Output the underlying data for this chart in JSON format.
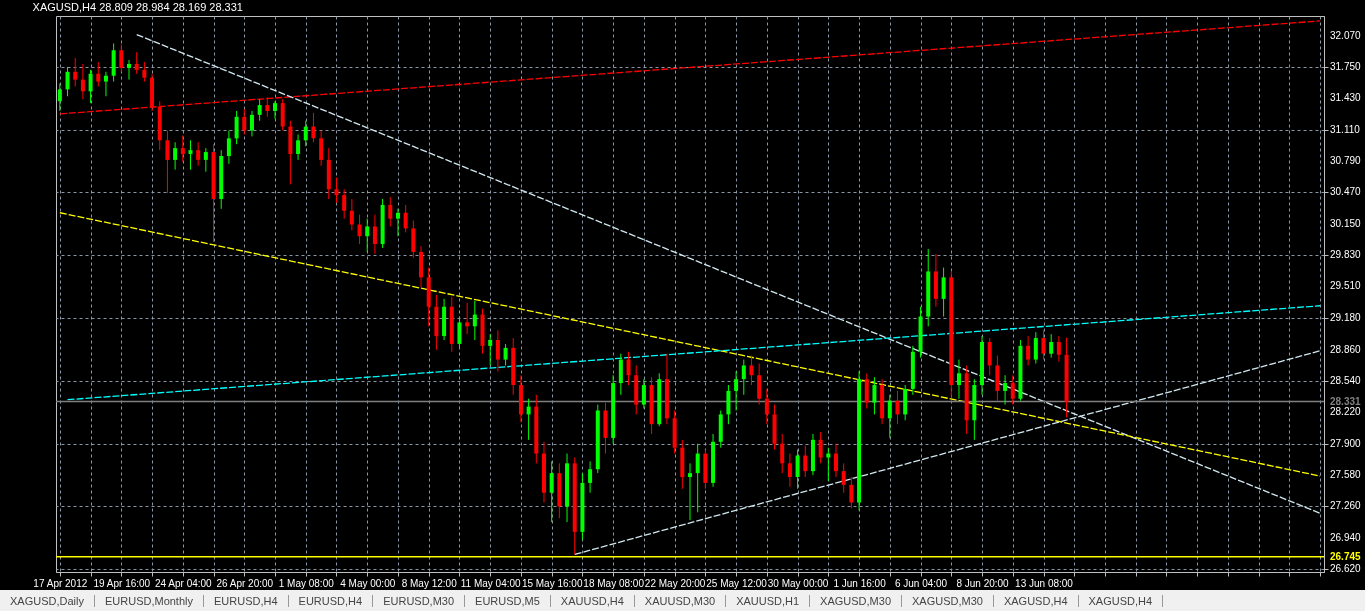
{
  "chart_data": {
    "type": "candlestick",
    "title": "XAGUSD,H4  28.809 28.984 28.169 28.331",
    "categories": [
      "17 Apr 2012",
      null,
      null,
      null,
      null,
      null,
      null,
      null,
      "19 Apr 16:00",
      null,
      null,
      null,
      null,
      null,
      null,
      null,
      "24 Apr 04:00",
      null,
      null,
      null,
      null,
      null,
      null,
      null,
      "26 Apr 20:00",
      null,
      null,
      null,
      null,
      null,
      null,
      null,
      "1 May 08:00",
      null,
      null,
      null,
      null,
      null,
      null,
      null,
      "4 May 00:00",
      null,
      null,
      null,
      null,
      null,
      null,
      null,
      "8 May 12:00",
      null,
      null,
      null,
      null,
      null,
      null,
      null,
      "11 May 04:00",
      null,
      null,
      null,
      null,
      null,
      null,
      null,
      "15 May 16:00",
      null,
      null,
      null,
      null,
      null,
      null,
      null,
      "18 May 08:00",
      null,
      null,
      null,
      null,
      null,
      null,
      null,
      "22 May 20:00",
      null,
      null,
      null,
      null,
      null,
      null,
      null,
      "25 May 12:00",
      null,
      null,
      null,
      null,
      null,
      null,
      null,
      "30 May 00:00",
      null,
      null,
      null,
      null,
      null,
      null,
      null,
      "1 Jun 16:00",
      null,
      null,
      null,
      null,
      null,
      null,
      null,
      "6 Jun 04:00",
      null,
      null,
      null,
      null,
      null,
      null,
      null,
      "8 Jun 20:00",
      null,
      null,
      null,
      null,
      null,
      null,
      null,
      "13 Jun 08:00",
      null,
      null,
      null,
      null,
      null,
      null,
      null,
      null,
      null,
      null,
      null,
      null,
      null,
      null,
      null,
      null,
      null,
      null,
      null,
      null,
      null,
      null,
      null,
      null,
      null,
      null,
      null,
      null,
      null,
      null,
      null,
      null,
      null,
      null,
      null,
      null
    ],
    "ohlc": [
      [
        31.4,
        31.58,
        31.3,
        31.52
      ],
      [
        31.52,
        31.75,
        31.45,
        31.7
      ],
      [
        31.7,
        31.84,
        31.55,
        31.62
      ],
      [
        31.62,
        31.78,
        31.42,
        31.5
      ],
      [
        31.5,
        31.72,
        31.38,
        31.68
      ],
      [
        31.68,
        31.8,
        31.55,
        31.6
      ],
      [
        31.6,
        31.7,
        31.45,
        31.66
      ],
      [
        31.66,
        31.99,
        31.6,
        31.92
      ],
      [
        31.92,
        31.98,
        31.7,
        31.74
      ],
      [
        31.74,
        31.82,
        31.62,
        31.78
      ],
      [
        31.78,
        31.9,
        31.68,
        31.72
      ],
      [
        31.72,
        31.8,
        31.6,
        31.64
      ],
      [
        31.64,
        31.68,
        31.3,
        31.34
      ],
      [
        31.34,
        31.4,
        30.9,
        31.0
      ],
      [
        31.0,
        31.1,
        30.46,
        30.8
      ],
      [
        30.8,
        30.98,
        30.7,
        30.92
      ],
      [
        30.92,
        31.05,
        30.78,
        30.86
      ],
      [
        30.86,
        31.0,
        30.7,
        30.9
      ],
      [
        30.9,
        30.98,
        30.74,
        30.8
      ],
      [
        30.8,
        30.92,
        30.68,
        30.88
      ],
      [
        30.88,
        30.96,
        29.96,
        30.4
      ],
      [
        30.4,
        30.9,
        30.3,
        30.84
      ],
      [
        30.84,
        31.1,
        30.76,
        31.02
      ],
      [
        31.02,
        31.3,
        30.96,
        31.24
      ],
      [
        31.24,
        31.32,
        31.06,
        31.1
      ],
      [
        31.1,
        31.3,
        31.04,
        31.26
      ],
      [
        31.26,
        31.42,
        31.2,
        31.36
      ],
      [
        31.36,
        31.44,
        31.24,
        31.3
      ],
      [
        31.3,
        31.4,
        31.22,
        31.38
      ],
      [
        31.38,
        31.42,
        31.1,
        31.14
      ],
      [
        31.14,
        31.2,
        30.55,
        30.86
      ],
      [
        30.86,
        31.06,
        30.8,
        31.0
      ],
      [
        31.0,
        31.2,
        30.94,
        31.14
      ],
      [
        31.14,
        31.28,
        30.98,
        31.02
      ],
      [
        31.02,
        31.1,
        30.74,
        30.8
      ],
      [
        30.8,
        30.92,
        30.4,
        30.5
      ],
      [
        30.5,
        30.62,
        30.36,
        30.44
      ],
      [
        30.44,
        30.5,
        30.2,
        30.28
      ],
      [
        30.28,
        30.4,
        30.08,
        30.14
      ],
      [
        30.14,
        30.24,
        29.94,
        30.02
      ],
      [
        30.02,
        30.2,
        29.86,
        30.12
      ],
      [
        30.12,
        30.24,
        29.84,
        29.94
      ],
      [
        29.94,
        30.4,
        29.9,
        30.34
      ],
      [
        30.34,
        30.42,
        30.12,
        30.2
      ],
      [
        30.2,
        30.3,
        30.02,
        30.26
      ],
      [
        30.26,
        30.34,
        30.06,
        30.1
      ],
      [
        30.1,
        30.18,
        29.8,
        29.86
      ],
      [
        29.86,
        29.92,
        29.5,
        29.6
      ],
      [
        29.6,
        29.7,
        29.1,
        29.3
      ],
      [
        29.3,
        29.42,
        28.86,
        29.0
      ],
      [
        29.0,
        29.38,
        28.96,
        29.3
      ],
      [
        29.3,
        29.4,
        28.84,
        28.92
      ],
      [
        28.92,
        29.2,
        28.88,
        29.14
      ],
      [
        29.14,
        29.34,
        29.02,
        29.1
      ],
      [
        29.1,
        29.36,
        28.96,
        29.22
      ],
      [
        29.22,
        29.28,
        28.82,
        28.9
      ],
      [
        28.9,
        29.02,
        28.7,
        28.96
      ],
      [
        28.96,
        29.06,
        28.64,
        28.76
      ],
      [
        28.76,
        28.92,
        28.7,
        28.88
      ],
      [
        28.88,
        28.98,
        28.4,
        28.5
      ],
      [
        28.5,
        28.6,
        28.12,
        28.2
      ],
      [
        28.2,
        28.36,
        27.94,
        28.28
      ],
      [
        28.28,
        28.4,
        27.7,
        27.8
      ],
      [
        27.8,
        27.92,
        27.3,
        27.4
      ],
      [
        27.4,
        27.72,
        27.1,
        27.6
      ],
      [
        27.6,
        27.7,
        27.14,
        27.26
      ],
      [
        27.26,
        27.8,
        27.1,
        27.7
      ],
      [
        27.7,
        27.76,
        26.77,
        27.0
      ],
      [
        27.0,
        27.6,
        26.92,
        27.5
      ],
      [
        27.5,
        27.72,
        27.4,
        27.64
      ],
      [
        27.64,
        28.3,
        27.6,
        28.24
      ],
      [
        28.24,
        28.32,
        27.8,
        27.96
      ],
      [
        27.96,
        28.6,
        27.9,
        28.52
      ],
      [
        28.52,
        28.82,
        28.4,
        28.76
      ],
      [
        28.76,
        28.84,
        28.5,
        28.6
      ],
      [
        28.6,
        28.7,
        28.2,
        28.3
      ],
      [
        28.3,
        28.56,
        28.26,
        28.5
      ],
      [
        28.5,
        28.58,
        28.0,
        28.1
      ],
      [
        28.1,
        28.62,
        28.08,
        28.56
      ],
      [
        28.56,
        28.82,
        28.1,
        28.16
      ],
      [
        28.16,
        28.24,
        27.8,
        27.86
      ],
      [
        27.86,
        27.94,
        27.44,
        27.56
      ],
      [
        27.56,
        27.7,
        27.12,
        27.6
      ],
      [
        27.6,
        27.9,
        27.2,
        27.8
      ],
      [
        27.8,
        27.84,
        27.44,
        27.5
      ],
      [
        27.5,
        28.0,
        27.46,
        27.92
      ],
      [
        27.92,
        28.24,
        27.86,
        28.2
      ],
      [
        28.2,
        28.5,
        28.1,
        28.44
      ],
      [
        28.44,
        28.64,
        28.24,
        28.56
      ],
      [
        28.56,
        28.76,
        28.4,
        28.7
      ],
      [
        28.7,
        28.8,
        28.5,
        28.6
      ],
      [
        28.6,
        28.72,
        28.3,
        28.36
      ],
      [
        28.36,
        28.46,
        28.1,
        28.2
      ],
      [
        28.2,
        28.3,
        27.84,
        27.9
      ],
      [
        27.9,
        28.0,
        27.6,
        27.7
      ],
      [
        27.7,
        27.8,
        27.46,
        27.56
      ],
      [
        27.56,
        27.84,
        27.44,
        27.78
      ],
      [
        27.78,
        27.88,
        27.56,
        27.62
      ],
      [
        27.62,
        28.0,
        27.58,
        27.94
      ],
      [
        27.94,
        28.02,
        27.7,
        27.76
      ],
      [
        27.76,
        27.86,
        27.52,
        27.8
      ],
      [
        27.8,
        27.9,
        27.56,
        27.62
      ],
      [
        27.62,
        27.7,
        27.4,
        27.48
      ],
      [
        27.48,
        27.56,
        27.24,
        27.3
      ],
      [
        27.3,
        28.64,
        27.22,
        28.56
      ],
      [
        28.56,
        28.62,
        28.26,
        28.32
      ],
      [
        28.32,
        28.58,
        28.2,
        28.5
      ],
      [
        28.5,
        28.56,
        28.1,
        28.16
      ],
      [
        28.16,
        28.4,
        27.96,
        28.34
      ],
      [
        28.34,
        28.44,
        28.1,
        28.2
      ],
      [
        28.2,
        28.5,
        28.14,
        28.46
      ],
      [
        28.46,
        28.9,
        28.4,
        28.84
      ],
      [
        28.84,
        29.3,
        28.78,
        29.2
      ],
      [
        29.2,
        29.89,
        29.1,
        29.66
      ],
      [
        29.66,
        29.84,
        29.3,
        29.38
      ],
      [
        29.38,
        29.7,
        29.2,
        29.6
      ],
      [
        29.6,
        29.66,
        28.38,
        28.5
      ],
      [
        28.5,
        28.76,
        28.36,
        28.62
      ],
      [
        28.62,
        28.7,
        28.0,
        28.14
      ],
      [
        28.14,
        28.56,
        27.94,
        28.5
      ],
      [
        28.5,
        29.0,
        28.4,
        28.94
      ],
      [
        28.94,
        28.98,
        28.6,
        28.7
      ],
      [
        28.7,
        28.8,
        28.34,
        28.44
      ],
      [
        28.44,
        28.6,
        28.3,
        28.52
      ],
      [
        28.52,
        28.6,
        28.3,
        28.36
      ],
      [
        28.36,
        28.96,
        28.34,
        28.9
      ],
      [
        28.9,
        29.0,
        28.7,
        28.76
      ],
      [
        28.76,
        29.04,
        28.72,
        28.98
      ],
      [
        28.98,
        29.06,
        28.76,
        28.82
      ],
      [
        28.82,
        29.02,
        28.78,
        28.94
      ],
      [
        28.94,
        29.0,
        28.74,
        28.809
      ],
      [
        28.809,
        28.984,
        28.169,
        28.331
      ],
      null,
      null,
      null,
      null,
      null,
      null,
      null,
      null,
      null,
      null,
      null,
      null,
      null,
      null,
      null,
      null,
      null,
      null,
      null,
      null,
      null,
      null,
      null,
      null,
      null,
      null,
      null,
      null,
      null,
      null,
      null,
      null,
      null
    ],
    "colors": [
      "#00ff00",
      "#00ff00",
      "#ff0000",
      "#ff0000",
      "#00ff00",
      "#ff0000",
      "#00ff00",
      "#00ff00",
      "#ff0000",
      "#00ff00",
      "#ff0000",
      "#ff0000",
      "#ff0000",
      "#ff0000",
      "#ff0000",
      "#00ff00",
      "#ff0000",
      "#00ff00",
      "#ff0000",
      "#00ff00",
      "#ff0000",
      "#00ff00",
      "#00ff00",
      "#00ff00",
      "#ff0000",
      "#00ff00",
      "#00ff00",
      "#ff0000",
      "#00ff00",
      "#ff0000",
      "#ff0000",
      "#00ff00",
      "#00ff00",
      "#ff0000",
      "#ff0000",
      "#ff0000",
      "#ff0000",
      "#ff0000",
      "#ff0000",
      "#ff0000",
      "#00ff00",
      "#ff0000",
      "#00ff00",
      "#ff0000",
      "#00ff00",
      "#ff0000",
      "#ff0000",
      "#ff0000",
      "#ff0000",
      "#ff0000",
      "#00ff00",
      "#ff0000",
      "#00ff00",
      "#ff0000",
      "#00ff00",
      "#ff0000",
      "#00ff00",
      "#ff0000",
      "#00ff00",
      "#ff0000",
      "#ff0000",
      "#00ff00",
      "#ff0000",
      "#ff0000",
      "#00ff00",
      "#ff0000",
      "#00ff00",
      "#ff0000",
      "#00ff00",
      "#00ff00",
      "#00ff00",
      "#ff0000",
      "#00ff00",
      "#00ff00",
      "#ff0000",
      "#ff0000",
      "#00ff00",
      "#ff0000",
      "#00ff00",
      "#ff0000",
      "#ff0000",
      "#ff0000",
      "#00ff00",
      "#00ff00",
      "#ff0000",
      "#00ff00",
      "#00ff00",
      "#00ff00",
      "#00ff00",
      "#00ff00",
      "#ff0000",
      "#ff0000",
      "#ff0000",
      "#ff0000",
      "#ff0000",
      "#ff0000",
      "#00ff00",
      "#ff0000",
      "#00ff00",
      "#ff0000",
      "#00ff00",
      "#ff0000",
      "#ff0000",
      "#ff0000",
      "#00ff00",
      "#ff0000",
      "#00ff00",
      "#ff0000",
      "#00ff00",
      "#ff0000",
      "#00ff00",
      "#00ff00",
      "#00ff00",
      "#00ff00",
      "#ff0000",
      "#00ff00",
      "#ff0000",
      "#00ff00",
      "#ff0000",
      "#00ff00",
      "#00ff00",
      "#ff0000",
      "#ff0000",
      "#00ff00",
      "#ff0000",
      "#00ff00",
      "#ff0000",
      "#00ff00",
      "#ff0000",
      "#00ff00",
      "#ff0000",
      "#ff0000",
      null,
      null,
      null,
      null,
      null,
      null,
      null,
      null,
      null,
      null,
      null,
      null,
      null,
      null,
      null,
      null,
      null,
      null,
      null,
      null,
      null,
      null,
      null,
      null,
      null,
      null,
      null,
      null,
      null,
      null,
      null,
      null,
      null
    ],
    "series": [
      {
        "type": "line",
        "color": "#ff0000",
        "line_style": "dashed",
        "values": [
          31.27,
          null,
          null,
          null,
          null,
          null,
          null,
          null,
          null,
          null,
          null,
          null,
          null,
          null,
          null,
          null,
          null,
          null,
          null,
          null,
          null,
          null,
          null,
          null,
          null,
          null,
          null,
          null,
          null,
          null,
          null,
          null,
          null,
          null,
          null,
          null,
          null,
          null,
          null,
          null,
          null,
          null,
          null,
          null,
          null,
          null,
          null,
          null,
          null,
          null,
          null,
          null,
          null,
          null,
          null,
          null,
          null,
          null,
          null,
          null,
          null,
          null,
          null,
          null,
          null,
          null,
          null,
          null,
          null,
          null,
          null,
          null,
          null,
          null,
          null,
          null,
          null,
          null,
          null,
          null,
          null,
          null,
          null,
          null,
          null,
          null,
          null,
          null,
          null,
          null,
          null,
          null,
          null,
          null,
          null,
          null,
          null,
          null,
          null,
          null,
          null,
          null,
          null,
          null,
          null,
          null,
          null,
          null,
          null,
          null,
          null,
          null,
          null,
          null,
          null,
          null,
          null,
          null,
          null,
          null,
          null,
          null,
          null,
          null,
          null,
          null,
          null,
          null,
          null,
          null,
          null,
          null,
          null,
          null,
          null,
          null,
          null,
          null,
          null,
          null,
          null,
          null,
          null,
          null,
          null,
          null,
          null,
          null,
          null,
          null,
          null,
          null,
          null,
          null,
          null,
          null,
          null,
          null,
          null,
          null,
          null,
          null,
          null,
          null,
          32.22
        ]
      },
      {
        "type": "line",
        "color": "#d0e8f0",
        "line_style": "dashed",
        "values": [
          null,
          null,
          null,
          null,
          null,
          null,
          null,
          null,
          null,
          null,
          32.08,
          null,
          null,
          null,
          null,
          null,
          null,
          null,
          null,
          null,
          null,
          null,
          null,
          null,
          null,
          null,
          null,
          null,
          null,
          null,
          null,
          null,
          null,
          null,
          null,
          null,
          null,
          null,
          null,
          null,
          null,
          null,
          null,
          null,
          null,
          null,
          null,
          null,
          null,
          null,
          null,
          null,
          null,
          null,
          null,
          null,
          null,
          null,
          null,
          null,
          null,
          null,
          null,
          null,
          null,
          null,
          null,
          null,
          null,
          null,
          null,
          null,
          null,
          null,
          null,
          null,
          null,
          null,
          null,
          null,
          null,
          null,
          null,
          null,
          null,
          null,
          null,
          null,
          null,
          null,
          null,
          null,
          null,
          null,
          null,
          null,
          null,
          null,
          null,
          null,
          null,
          null,
          null,
          null,
          null,
          null,
          null,
          null,
          null,
          null,
          null,
          null,
          null,
          null,
          null,
          null,
          null,
          null,
          null,
          null,
          null,
          null,
          null,
          null,
          null,
          null,
          null,
          null,
          null,
          null,
          null,
          null,
          null,
          null,
          null,
          null,
          null,
          null,
          null,
          null,
          null,
          null,
          null,
          null,
          null,
          null,
          null,
          null,
          null,
          null,
          null,
          null,
          null,
          null,
          null,
          null,
          null,
          null,
          null,
          null,
          null,
          null,
          null,
          null,
          27.19
        ]
      },
      {
        "type": "line",
        "color": "#ffff00",
        "line_style": "dashed",
        "values": [
          30.26,
          null,
          null,
          null,
          null,
          null,
          null,
          null,
          null,
          null,
          null,
          null,
          null,
          null,
          null,
          null,
          null,
          null,
          null,
          null,
          null,
          null,
          null,
          null,
          null,
          null,
          null,
          null,
          null,
          null,
          null,
          null,
          null,
          null,
          null,
          null,
          null,
          null,
          null,
          null,
          null,
          null,
          null,
          null,
          null,
          null,
          null,
          null,
          null,
          null,
          null,
          null,
          null,
          null,
          null,
          null,
          null,
          null,
          null,
          null,
          null,
          null,
          null,
          null,
          null,
          null,
          null,
          null,
          null,
          null,
          null,
          null,
          null,
          null,
          null,
          null,
          null,
          null,
          null,
          null,
          null,
          null,
          null,
          null,
          null,
          null,
          null,
          null,
          null,
          null,
          null,
          null,
          null,
          null,
          null,
          null,
          null,
          null,
          null,
          null,
          null,
          null,
          null,
          null,
          null,
          null,
          null,
          null,
          null,
          null,
          null,
          null,
          null,
          null,
          null,
          null,
          null,
          null,
          null,
          null,
          null,
          null,
          null,
          null,
          null,
          null,
          null,
          null,
          null,
          null,
          null,
          null,
          null,
          null,
          null,
          null,
          null,
          null,
          null,
          null,
          null,
          null,
          null,
          null,
          null,
          null,
          null,
          null,
          null,
          null,
          null,
          null,
          null,
          null,
          null,
          null,
          null,
          null,
          null,
          null,
          null,
          null,
          null,
          null,
          27.57
        ]
      },
      {
        "type": "line",
        "color": "#00ffff",
        "line_style": "dashed",
        "values": [
          null,
          28.35,
          null,
          null,
          null,
          null,
          null,
          null,
          null,
          null,
          null,
          null,
          null,
          null,
          null,
          null,
          null,
          null,
          null,
          null,
          null,
          null,
          null,
          null,
          null,
          null,
          null,
          null,
          null,
          null,
          null,
          null,
          null,
          null,
          null,
          null,
          null,
          null,
          null,
          null,
          null,
          null,
          null,
          null,
          null,
          null,
          null,
          null,
          null,
          null,
          null,
          null,
          null,
          null,
          null,
          null,
          null,
          null,
          null,
          null,
          null,
          null,
          null,
          null,
          null,
          null,
          null,
          null,
          null,
          null,
          null,
          null,
          null,
          null,
          null,
          null,
          null,
          null,
          null,
          null,
          null,
          null,
          null,
          null,
          null,
          null,
          null,
          null,
          null,
          null,
          null,
          null,
          null,
          null,
          null,
          null,
          null,
          null,
          null,
          null,
          null,
          null,
          null,
          null,
          null,
          null,
          null,
          null,
          null,
          null,
          null,
          null,
          null,
          null,
          null,
          null,
          null,
          null,
          null,
          null,
          null,
          null,
          null,
          null,
          null,
          null,
          null,
          null,
          null,
          null,
          null,
          null,
          null,
          null,
          null,
          null,
          null,
          null,
          null,
          null,
          null,
          null,
          null,
          null,
          null,
          null,
          null,
          null,
          null,
          null,
          null,
          null,
          null,
          null,
          null,
          null,
          null,
          null,
          null,
          null,
          null,
          null,
          null,
          null,
          29.31
        ]
      },
      {
        "type": "line",
        "color": "#d0e8f0",
        "line_style": "dashed",
        "values": [
          null,
          null,
          null,
          null,
          null,
          null,
          null,
          null,
          null,
          null,
          null,
          null,
          null,
          null,
          null,
          null,
          null,
          null,
          null,
          null,
          null,
          null,
          null,
          null,
          null,
          null,
          null,
          null,
          null,
          null,
          null,
          null,
          null,
          null,
          null,
          null,
          null,
          null,
          null,
          null,
          null,
          null,
          null,
          null,
          null,
          null,
          null,
          null,
          null,
          null,
          null,
          null,
          null,
          null,
          null,
          null,
          null,
          null,
          null,
          null,
          null,
          null,
          null,
          null,
          null,
          null,
          null,
          26.77,
          null,
          null,
          null,
          null,
          null,
          null,
          null,
          null,
          null,
          null,
          null,
          null,
          null,
          null,
          null,
          null,
          null,
          null,
          null,
          null,
          null,
          null,
          null,
          null,
          null,
          null,
          null,
          null,
          null,
          null,
          null,
          null,
          null,
          null,
          null,
          null,
          null,
          null,
          null,
          null,
          null,
          null,
          null,
          null,
          null,
          null,
          null,
          null,
          null,
          null,
          null,
          null,
          null,
          null,
          null,
          null,
          null,
          null,
          null,
          null,
          null,
          null,
          null,
          null,
          null,
          null,
          null,
          null,
          null,
          null,
          null,
          null,
          null,
          null,
          null,
          null,
          null,
          null,
          null,
          null,
          null,
          null,
          null,
          null,
          null,
          null,
          null,
          null,
          null,
          null,
          null,
          null,
          null,
          null,
          null,
          null,
          28.85
        ]
      }
    ],
    "ref_lines": [
      {
        "axis": "y",
        "value": 28.331,
        "label": "28.331",
        "color": "#808080"
      },
      {
        "axis": "y",
        "value": 26.745,
        "label": "26.745",
        "color": "#ffff00"
      }
    ],
    "ylim": [
      26.59,
      32.27
    ],
    "yticks": [
      {
        "value": 26.62,
        "label": "26.620"
      },
      {
        "value": 26.94,
        "label": "26.940"
      },
      {
        "value": 27.26,
        "label": "27.260"
      },
      {
        "value": 27.58,
        "label": "27.580"
      },
      {
        "value": 27.9,
        "label": "27.900"
      },
      {
        "value": 28.22,
        "label": "28.220"
      },
      {
        "value": 28.54,
        "label": "28.540"
      },
      {
        "value": 28.86,
        "label": "28.860"
      },
      {
        "value": 29.18,
        "label": "29.180"
      },
      {
        "value": 29.51,
        "label": "29.510"
      },
      {
        "value": 29.83,
        "label": "29.830"
      },
      {
        "value": 30.15,
        "label": "30.150"
      },
      {
        "value": 30.47,
        "label": "30.470"
      },
      {
        "value": 30.79,
        "label": "30.790"
      },
      {
        "value": 31.11,
        "label": "31.110"
      },
      {
        "value": 31.43,
        "label": "31.430"
      },
      {
        "value": 31.75,
        "label": "31.750"
      },
      {
        "value": 32.07,
        "label": "32.070"
      }
    ],
    "grid": true,
    "annotations": [
      "XAGUSD,Daily",
      "EURUSD,Monthly",
      "EURUSD,H4",
      "EURUSD,H4",
      "EURUSD,M30",
      "EURUSD,M5",
      "XAUUSD,H4",
      "XAUUSD,M30",
      "XAUUSD,H1",
      "XAGUSD,M30",
      "XAGUSD,M30",
      "XAGUSD,H4",
      "XAGUSD,H4"
    ]
  }
}
